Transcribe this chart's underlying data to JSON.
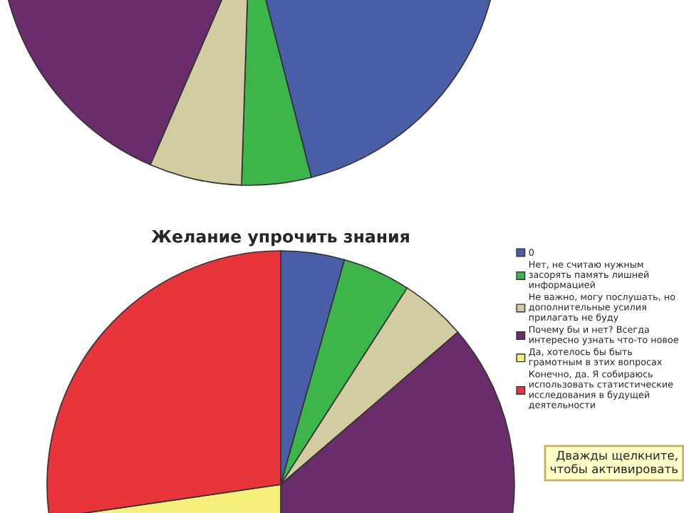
{
  "chart_data": [
    {
      "type": "pie",
      "categories": [
        null,
        null,
        null,
        null
      ],
      "values": [
        46,
        4.5,
        6,
        43.5
      ],
      "colors": [
        "#4a5ea8",
        "#3cb54a",
        "#d2cca0",
        "#6b2c6b"
      ],
      "legend": false
    },
    {
      "type": "pie",
      "title": "Желание упрочить знания",
      "categories": [
        "0",
        "Нет, не считаю нужным\nзасорять память лишней\nинформацией",
        "Не важно, могу послушать, но\nдополнительные усилия\nприлагать не буду",
        "Почему бы и нет? Всегда\nинтересно узнать что-то новое",
        "Да, хотелось бы быть\nграмотным в этих вопросах",
        "Конечно, да. Я собираюсь\nиспользовать статистические\nисследования в будущей\nдеятельности"
      ],
      "values": [
        4.4,
        4.7,
        4.6,
        36.3,
        22.7,
        27.3
      ],
      "colors": [
        "#4a5ea8",
        "#3cb54a",
        "#d2cca0",
        "#6b2c6b",
        "#f5f07a",
        "#e8343a"
      ],
      "legend": "right",
      "annotations": [
        "Дважды щелкните,\nчтобы активировать"
      ]
    }
  ]
}
